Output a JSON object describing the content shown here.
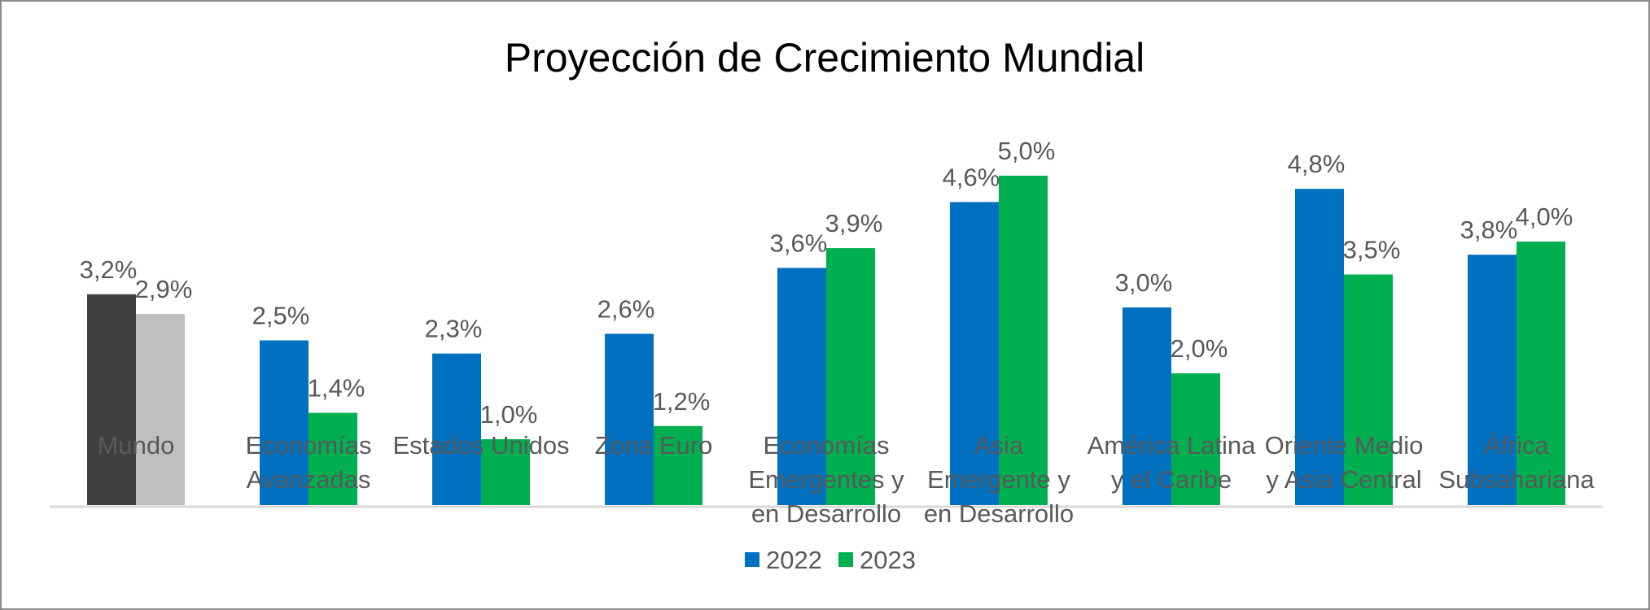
{
  "chart_data": {
    "type": "bar",
    "title": "Proyección de Crecimiento Mundial",
    "categories": [
      [
        "Mundo"
      ],
      [
        "Economías",
        "Avanzadas"
      ],
      [
        "Estados Unidos"
      ],
      [
        "Zona Euro"
      ],
      [
        "Economías",
        "Emergentes y",
        "en Desarrollo"
      ],
      [
        "Asia",
        "Emergente y",
        "en Desarrollo"
      ],
      [
        "América Latina",
        "y el Caribe"
      ],
      [
        "Oriente Medio",
        "y Asia Central"
      ],
      [
        "África",
        "Subsahariana"
      ]
    ],
    "series": [
      {
        "name": "2022",
        "color": "#0070C0",
        "values": [
          3.2,
          2.5,
          2.3,
          2.6,
          3.6,
          4.6,
          3.0,
          4.8,
          3.8
        ],
        "labels": [
          "3,2%",
          "2,5%",
          "2,3%",
          "2,6%",
          "3,6%",
          "4,6%",
          "3,0%",
          "4,8%",
          "3,8%"
        ]
      },
      {
        "name": "2023",
        "color": "#00B050",
        "values": [
          2.9,
          1.4,
          1.0,
          1.2,
          3.9,
          5.0,
          2.0,
          3.5,
          4.0
        ],
        "labels": [
          "2,9%",
          "1,4%",
          "1,0%",
          "1,2%",
          "3,9%",
          "5,0%",
          "2,0%",
          "3,5%",
          "4,0%"
        ]
      }
    ],
    "point_color_overrides": {
      "Mundo": [
        "#404040",
        "#BFBFBF"
      ]
    },
    "ylim": [
      0,
      5.5
    ],
    "grid": false,
    "legend": "bottom",
    "xlabel": "",
    "ylabel": ""
  }
}
